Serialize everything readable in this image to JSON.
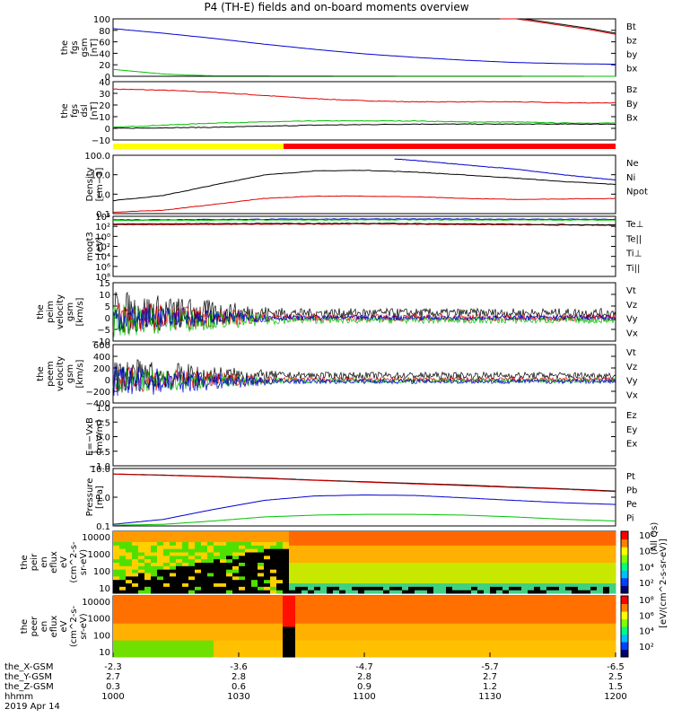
{
  "title": "P4 (TH-E) fields and on-board moments overview",
  "colors": {
    "black": "#000000",
    "red": "#e00000",
    "green": "#00c000",
    "blue": "#0000d0",
    "yellow": "#ffff00",
    "barred": "#ff0000"
  },
  "chart_data": [
    {
      "type": "line",
      "id": "fgs_gsm",
      "ylabel": [
        "the",
        "fgs",
        "gsm",
        "[nT]"
      ],
      "ylim": [
        0,
        100
      ],
      "yticks": [
        "0",
        "20",
        "40",
        "60",
        "80",
        "100"
      ],
      "legend": [
        {
          "name": "Bt",
          "color": "black"
        },
        {
          "name": "bz",
          "color": "red"
        },
        {
          "name": "by",
          "color": "green"
        },
        {
          "name": "bx",
          "color": "blue"
        }
      ],
      "series": [
        {
          "name": "Bt",
          "color": "black",
          "x": [
            0.77,
            0.85,
            0.95,
            1.0
          ],
          "y": [
            106,
            96,
            83,
            75
          ]
        },
        {
          "name": "bz",
          "color": "red",
          "x": [
            0.77,
            0.85,
            0.95,
            1.0
          ],
          "y": [
            104,
            94,
            81,
            73
          ]
        },
        {
          "name": "by",
          "color": "green",
          "x": [
            0,
            0.05,
            0.1,
            0.15,
            0.2,
            1.0
          ],
          "y": [
            12,
            8,
            4,
            2,
            1,
            0
          ]
        },
        {
          "name": "bx",
          "color": "blue",
          "x": [
            0,
            0.1,
            0.2,
            0.3,
            0.4,
            0.5,
            0.6,
            0.7,
            0.8,
            0.9,
            1.0
          ],
          "y": [
            83,
            75,
            66,
            56,
            47,
            39,
            33,
            28,
            24,
            22,
            21
          ]
        }
      ]
    },
    {
      "type": "line",
      "id": "fgs_dsl",
      "ylabel": [
        "the",
        "fgs",
        "dsl",
        "[nT]"
      ],
      "ylim": [
        -15,
        40
      ],
      "yticks": [
        "−10",
        "0",
        "10",
        "20",
        "30",
        "40"
      ],
      "legend": [
        {
          "name": "Bz",
          "color": "red"
        },
        {
          "name": "By",
          "color": "green"
        },
        {
          "name": "Bx",
          "color": "black"
        }
      ],
      "series": [
        {
          "name": "Bz",
          "color": "red",
          "x": [
            0,
            0.1,
            0.2,
            0.3,
            0.4,
            0.5,
            0.6,
            0.7,
            0.8,
            0.9,
            1.0
          ],
          "y": [
            33,
            32,
            30,
            27,
            24,
            22,
            21,
            21,
            21,
            20,
            20
          ]
        },
        {
          "name": "By",
          "color": "green",
          "x": [
            0,
            0.1,
            0.2,
            0.3,
            0.4,
            0.5,
            0.6,
            0.7,
            0.8,
            0.9,
            1.0
          ],
          "y": [
            -3,
            -1,
            1,
            2,
            3,
            3,
            3,
            2,
            2,
            1,
            1
          ]
        },
        {
          "name": "Bx",
          "color": "black",
          "x": [
            0,
            0.2,
            0.4,
            0.6,
            0.8,
            1.0
          ],
          "y": [
            -4,
            -3,
            -1,
            0,
            0,
            0
          ]
        }
      ]
    },
    {
      "type": "line",
      "id": "density",
      "log": true,
      "ylabel": [
        "Density",
        "[cm−3]"
      ],
      "ylim": [
        0.1,
        300
      ],
      "yticks": [
        "0.1",
        "1.0",
        "10.0",
        "100.0"
      ],
      "legend": [
        {
          "name": "Ne",
          "color": "red"
        },
        {
          "name": "Ni",
          "color": "black"
        },
        {
          "name": "Npot",
          "color": "blue"
        }
      ],
      "series": [
        {
          "name": "Ne",
          "color": "red",
          "x": [
            0,
            0.1,
            0.2,
            0.3,
            0.4,
            0.5,
            0.6,
            0.7,
            0.8,
            0.9,
            1.0
          ],
          "y": [
            0.12,
            0.16,
            0.35,
            0.8,
            1.1,
            1.1,
            1.0,
            0.8,
            0.7,
            0.75,
            0.8
          ]
        },
        {
          "name": "Ni",
          "color": "black",
          "x": [
            0,
            0.1,
            0.2,
            0.3,
            0.4,
            0.5,
            0.6,
            0.7,
            0.8,
            0.9,
            1.0
          ],
          "y": [
            0.6,
            1.2,
            5,
            20,
            35,
            38,
            30,
            20,
            13,
            8,
            5.5
          ]
        },
        {
          "name": "Npot",
          "color": "blue",
          "x": [
            0.56,
            0.6,
            0.7,
            0.8,
            0.9,
            1.0
          ],
          "y": [
            180,
            150,
            80,
            45,
            20,
            10
          ]
        }
      ]
    },
    {
      "type": "line",
      "id": "temp",
      "log": true,
      "ylabel": [
        "moqt3",
        "[eV]"
      ],
      "ylim": [
        1e-08,
        10000
      ],
      "yticks": [
        "10⁸",
        "10⁶",
        "10⁴",
        "10²",
        "10⁰",
        "10²",
        "10⁴"
      ],
      "legend": [
        {
          "name": "Te⊥",
          "color": "red"
        },
        {
          "name": "Te||",
          "color": "black"
        },
        {
          "name": "Ti⊥",
          "color": "blue"
        },
        {
          "name": "Ti||",
          "color": "green"
        }
      ],
      "series": [
        {
          "name": "Te⊥",
          "color": "red",
          "x": [
            0,
            0.5,
            1.0
          ],
          "y": [
            200,
            300,
            150
          ]
        },
        {
          "name": "Ti⊥",
          "color": "blue",
          "x": [
            0,
            0.5,
            1.0
          ],
          "y": [
            2000,
            3000,
            2500
          ]
        },
        {
          "name": "Ti||",
          "color": "green",
          "x": [
            0,
            0.5,
            1.0
          ],
          "y": [
            1500,
            2000,
            1800
          ]
        },
        {
          "name": "Te||",
          "color": "black",
          "x": [
            0,
            0.5,
            1.0
          ],
          "y": [
            300,
            400,
            200
          ]
        }
      ]
    },
    {
      "type": "line",
      "id": "peim",
      "ylabel": [
        "the",
        "peim",
        "velocity",
        "gsm",
        "[km/s]"
      ],
      "ylim": [
        -10,
        15
      ],
      "yticks": [
        "−10",
        "−5",
        "0",
        "5",
        "10",
        "15"
      ],
      "legend": [
        {
          "name": "Vt",
          "color": "black"
        },
        {
          "name": "Vz",
          "color": "red"
        },
        {
          "name": "Vy",
          "color": "green"
        },
        {
          "name": "Vx",
          "color": "blue"
        }
      ]
    },
    {
      "type": "line",
      "id": "peem",
      "ylabel": [
        "the",
        "peem",
        "velocity",
        "gsm",
        "[km/s]"
      ],
      "ylim": [
        -400,
        600
      ],
      "yticks": [
        "−400",
        "−200",
        "0",
        "200",
        "400",
        "600"
      ],
      "legend": [
        {
          "name": "Vt",
          "color": "black"
        },
        {
          "name": "Vz",
          "color": "red"
        },
        {
          "name": "Vy",
          "color": "green"
        },
        {
          "name": "Vx",
          "color": "blue"
        }
      ]
    },
    {
      "type": "line",
      "id": "efield",
      "ylabel": [
        "E=−VxB",
        "[mV/m]"
      ],
      "ylim": [
        -1,
        1
      ],
      "yticks": [
        "−1.0",
        "−0.5",
        "0.0",
        "0.5",
        "1.0"
      ],
      "legend": [
        {
          "name": "Ez",
          "color": "red"
        },
        {
          "name": "Ey",
          "color": "green"
        },
        {
          "name": "Ex",
          "color": "blue"
        }
      ]
    },
    {
      "type": "line",
      "id": "pressure",
      "log": true,
      "ylabel": [
        "Pressure",
        "[nPa]"
      ],
      "ylim": [
        0.02,
        60
      ],
      "yticks": [
        "0.1",
        "1.0",
        "10.0"
      ],
      "legend": [
        {
          "name": "Pt",
          "color": "black"
        },
        {
          "name": "Pb",
          "color": "red"
        },
        {
          "name": "Pe",
          "color": "green"
        },
        {
          "name": "Pi",
          "color": "blue"
        }
      ],
      "series": [
        {
          "name": "Pt",
          "color": "black",
          "x": [
            0,
            0.1,
            0.2,
            0.3,
            0.4,
            0.5,
            0.6,
            0.7,
            0.8,
            0.9,
            1.0
          ],
          "y": [
            28,
            24,
            20,
            16,
            12,
            9.5,
            7.5,
            6,
            4.5,
            3.5,
            2.6
          ]
        },
        {
          "name": "Pb",
          "color": "red",
          "x": [
            0,
            0.1,
            0.2,
            0.3,
            0.4,
            0.5,
            0.6,
            0.7,
            0.8,
            0.9,
            1.0
          ],
          "y": [
            27,
            23,
            19,
            15,
            11.5,
            9,
            7,
            5.5,
            4.2,
            3.3,
            2.4
          ]
        },
        {
          "name": "Pe",
          "color": "green",
          "x": [
            0,
            0.1,
            0.2,
            0.3,
            0.4,
            0.5,
            0.6,
            0.7,
            0.8,
            0.9,
            1.0
          ],
          "y": [
            0.022,
            0.025,
            0.04,
            0.07,
            0.09,
            0.1,
            0.1,
            0.09,
            0.07,
            0.05,
            0.04
          ]
        },
        {
          "name": "Pi",
          "color": "blue",
          "x": [
            0,
            0.1,
            0.2,
            0.3,
            0.4,
            0.5,
            0.6,
            0.7,
            0.8,
            0.9,
            1.0
          ],
          "y": [
            0.025,
            0.05,
            0.2,
            0.7,
            1.3,
            1.5,
            1.4,
            1.0,
            0.7,
            0.5,
            0.4
          ]
        }
      ]
    },
    {
      "type": "heatmap",
      "id": "peir",
      "ylabel": [
        "the",
        "peir",
        "en",
        "eflux",
        "eV",
        "(cm^2-s-",
        "sr-eV)"
      ],
      "yticks": [
        "10",
        "100",
        "1000",
        "10000"
      ],
      "colorbar": {
        "ticks": [
          "10²",
          "10⁴",
          "10⁶",
          "10⁸"
        ],
        "label": "[eV/(cm^2-s-sr-eV)]",
        "label2": "(All Qs)"
      }
    },
    {
      "type": "heatmap",
      "id": "peer",
      "ylabel": [
        "the",
        "peer",
        "en",
        "eflux",
        "eV",
        "(cm^2-s-",
        "sr-eV)"
      ],
      "yticks": [
        "10",
        "100",
        "1000",
        "10000"
      ],
      "colorbar": {
        "ticks": [
          "10²",
          "10⁴",
          "10⁶",
          "10⁸"
        ]
      }
    }
  ],
  "xaxis": {
    "rows": [
      {
        "label": "the_X-GSM",
        "values": [
          "-2.3",
          "-3.6",
          "-4.7",
          "-5.7",
          "-6.5"
        ]
      },
      {
        "label": "the_Y-GSM",
        "values": [
          "2.7",
          "2.8",
          "2.8",
          "2.7",
          "2.5"
        ]
      },
      {
        "label": "the_Z-GSM",
        "values": [
          "0.3",
          "0.6",
          "0.9",
          "1.2",
          "1.5"
        ]
      },
      {
        "label": "hhmm",
        "values": [
          "1000",
          "1030",
          "1100",
          "1130",
          "1200"
        ]
      }
    ],
    "date": "2019 Apr 14"
  }
}
